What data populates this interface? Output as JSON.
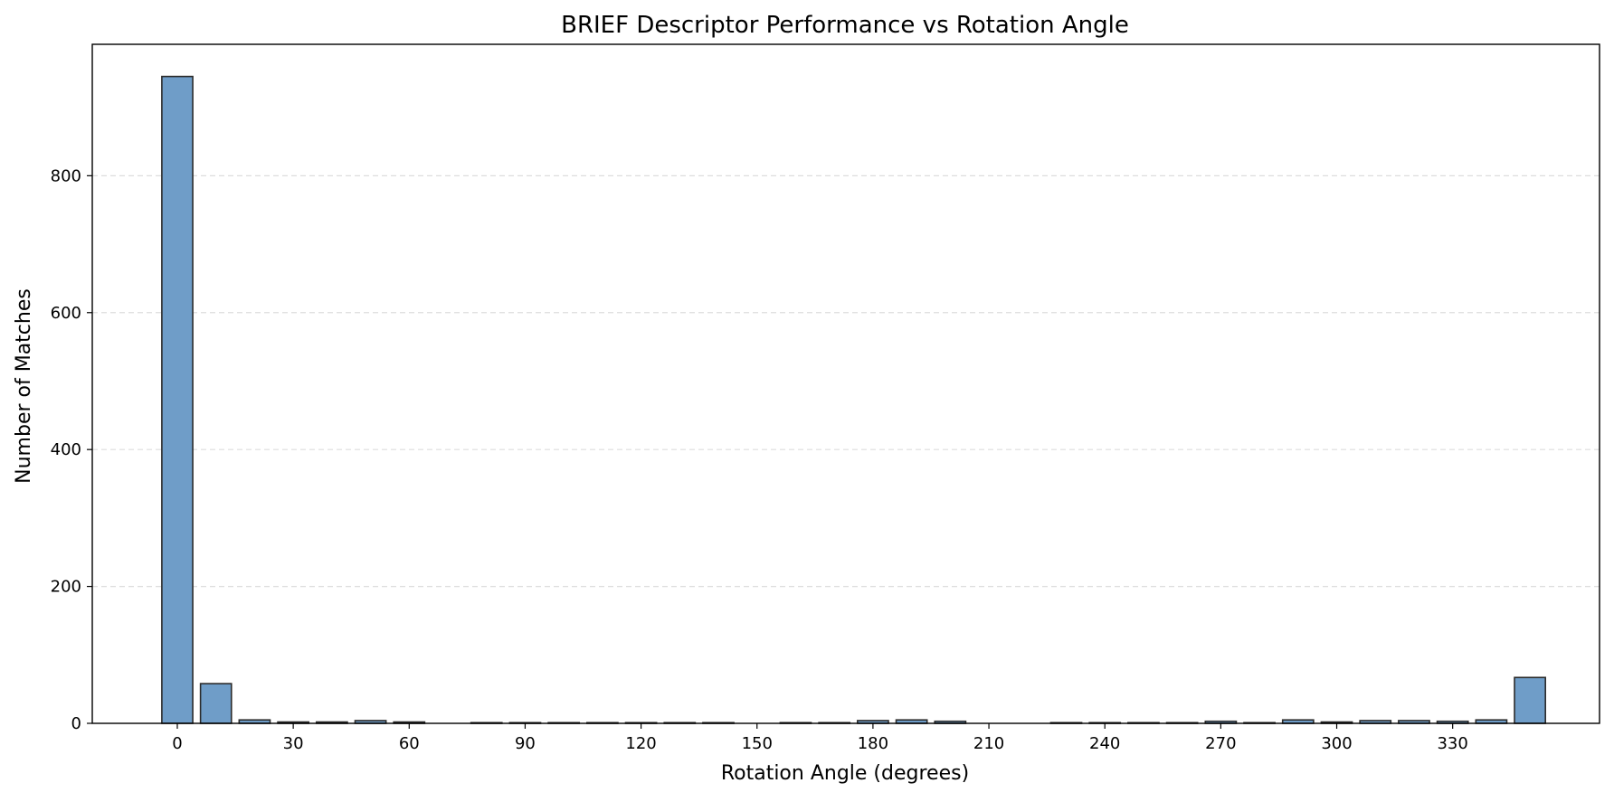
{
  "chart_data": {
    "type": "bar",
    "title": "BRIEF Descriptor Performance vs Rotation Angle",
    "xlabel": "Rotation Angle (degrees)",
    "ylabel": "Number of Matches",
    "x": [
      0,
      10,
      20,
      30,
      40,
      50,
      60,
      70,
      80,
      90,
      100,
      110,
      120,
      130,
      140,
      150,
      160,
      170,
      180,
      190,
      200,
      210,
      220,
      230,
      240,
      250,
      260,
      270,
      280,
      290,
      300,
      310,
      320,
      330,
      340,
      350
    ],
    "values": [
      945,
      58,
      5,
      2,
      2,
      4,
      2,
      0,
      1,
      1,
      1,
      1,
      1,
      1,
      1,
      0,
      1,
      1,
      4,
      5,
      3,
      0,
      0,
      1,
      1,
      1,
      1,
      3,
      1,
      5,
      2,
      4,
      4,
      3,
      5,
      67
    ],
    "xticks": [
      0,
      30,
      60,
      90,
      120,
      150,
      180,
      210,
      240,
      270,
      300,
      330
    ],
    "yticks": [
      0,
      200,
      400,
      600,
      800
    ],
    "xlim": [
      -22,
      368
    ],
    "ylim": [
      0,
      992
    ],
    "grid": "y-dashed",
    "colors": {
      "bar_fill": "#6f9dc8",
      "bar_edge": "#2b2b2b",
      "grid": "#dddddd"
    }
  }
}
